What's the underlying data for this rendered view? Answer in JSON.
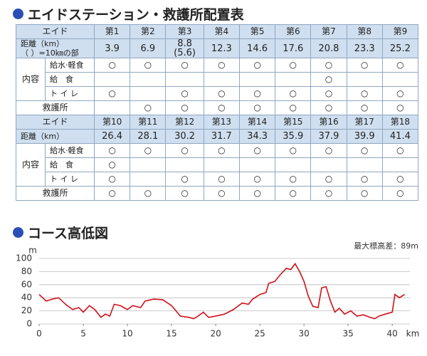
{
  "table_title": "エイドステーション・救護所配置表",
  "sections": [
    {
      "header": [
        "エイド",
        "第1",
        "第2",
        "第3",
        "第4",
        "第5",
        "第6",
        "第7",
        "第8",
        "第9"
      ],
      "distance_label": "距離（km）\n（ ）=10㎞の部",
      "distances": [
        3.9,
        6.9,
        "8.8\n(5.6)",
        12.3,
        14.6,
        17.6,
        20.8,
        23.3,
        25.2
      ],
      "content_label": "内容",
      "items": [
        {
          "label": "給水·軽食",
          "marks": [
            "○",
            "○",
            "○",
            "○",
            "○",
            "○",
            "○",
            "○",
            "○"
          ]
        },
        {
          "label": "給　食",
          "marks": [
            null,
            null,
            null,
            null,
            null,
            null,
            "○",
            null,
            null
          ]
        },
        {
          "label": "ト イ レ",
          "marks": [
            "○",
            null,
            "○",
            "○",
            "○",
            "○",
            "○",
            "○",
            "○"
          ]
        }
      ],
      "first_aid": {
        "label": "救護所",
        "marks": [
          null,
          "○",
          "○",
          "○",
          "○",
          "○",
          "○",
          "○",
          "○"
        ]
      }
    },
    {
      "header": [
        "エイド",
        "第10",
        "第11",
        "第12",
        "第13",
        "第14",
        "第15",
        "第16",
        "第17",
        "第18"
      ],
      "distance_label": "距離（km）",
      "distances": [
        26.4,
        28.1,
        30.2,
        31.7,
        34.3,
        35.9,
        37.9,
        39.9,
        41.4
      ],
      "content_label": "内容",
      "items": [
        {
          "label": "給水·軽食",
          "marks": [
            "○",
            "○",
            "○",
            "○",
            "○",
            "○",
            "○",
            "○",
            "○"
          ]
        },
        {
          "label": "給　食",
          "marks": [
            "○",
            null,
            null,
            null,
            null,
            null,
            null,
            null,
            null
          ]
        },
        {
          "label": "ト イ レ",
          "marks": [
            "○",
            null,
            "○",
            "○",
            "○",
            "○",
            "○",
            "○",
            "○"
          ]
        }
      ],
      "first_aid": {
        "label": "救護所",
        "marks": [
          "○",
          "○",
          "○",
          "○",
          "○",
          "○",
          "○",
          "○",
          "○"
        ]
      }
    }
  ],
  "chart_data": {
    "type": "line",
    "title": "コース高低図",
    "annotation": "最大標高差：89m",
    "y_label": "m",
    "x_label": "km",
    "color": "#d0101a",
    "grid": true,
    "xlim": [
      0,
      42
    ],
    "xticks": [
      0,
      5,
      10,
      15,
      20,
      25,
      30,
      35,
      40
    ],
    "ylim": [
      0,
      100
    ],
    "yticks": [
      0,
      20,
      40,
      60,
      80,
      100
    ],
    "x": [
      0,
      0.8,
      1.5,
      2.2,
      3,
      3.8,
      4.5,
      5,
      5.7,
      6.3,
      7,
      7.5,
      8,
      8.5,
      9.2,
      10,
      10.6,
      11.5,
      12,
      13,
      14,
      15,
      16,
      17,
      17.5,
      18,
      18.6,
      19.2,
      20,
      21,
      22,
      23,
      23.7,
      24.2,
      25,
      25.7,
      26,
      26.7,
      27.3,
      28,
      28.5,
      29,
      29.5,
      30,
      30.5,
      31,
      31.6,
      32,
      32.5,
      33,
      33.5,
      34,
      34.6,
      35.3,
      36,
      36.7,
      37.5,
      38,
      38.5,
      39.2,
      40,
      40.3,
      40.8,
      41.4
    ],
    "values": [
      45,
      35,
      38,
      40,
      30,
      22,
      25,
      18,
      28,
      22,
      10,
      15,
      12,
      30,
      28,
      22,
      28,
      25,
      35,
      38,
      37,
      28,
      12,
      10,
      8,
      12,
      18,
      10,
      12,
      15,
      22,
      32,
      30,
      38,
      45,
      48,
      62,
      65,
      75,
      85,
      83,
      92,
      80,
      65,
      42,
      27,
      25,
      55,
      57,
      35,
      18,
      24,
      15,
      20,
      12,
      14,
      10,
      8,
      12,
      15,
      18,
      45,
      40,
      45
    ]
  }
}
